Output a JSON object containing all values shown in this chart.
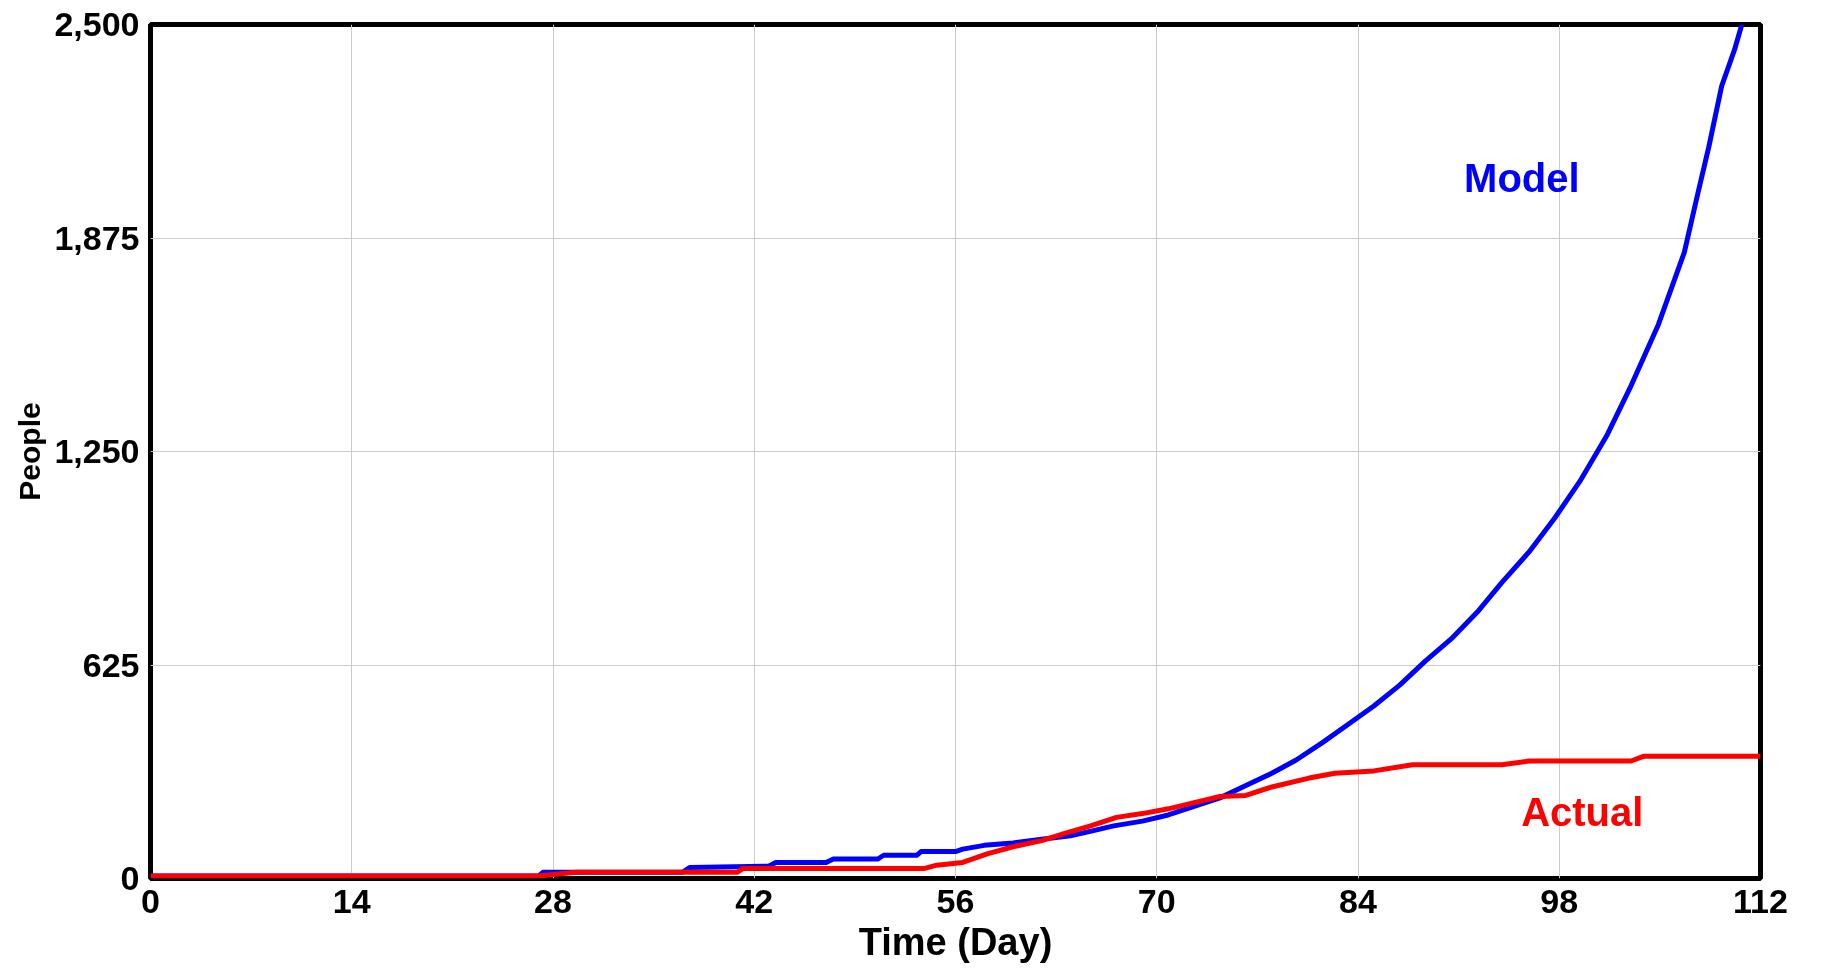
{
  "chart_data": {
    "type": "line",
    "xlabel": "Time (Day)",
    "ylabel": "People",
    "xlim": [
      0,
      112
    ],
    "xticks": [
      0,
      14,
      28,
      42,
      56,
      70,
      84,
      98,
      112
    ],
    "ylim": [
      0,
      2500
    ],
    "yticks": [
      0,
      625,
      {
        "value": 1250,
        "label": "1,250"
      },
      {
        "value": 1875,
        "label": "1,875"
      },
      {
        "value": 2500,
        "label": "2,500"
      }
    ],
    "grid": true,
    "legend": false,
    "series": [
      {
        "name": "Model",
        "color": "#0000ff",
        "x": [
          0,
          27,
          27.3,
          37,
          37.5,
          43,
          43.5,
          47,
          47.5,
          50.6,
          51,
          53.3,
          53.6,
          56,
          56.5,
          58,
          60,
          62,
          64,
          65.6,
          67,
          69,
          70.8,
          72.6,
          74.4,
          76.2,
          78,
          79.7,
          81.5,
          83.3,
          85.1,
          86.9,
          88.7,
          90.5,
          92.3,
          94,
          95.9,
          97.7,
          99.5,
          101.3,
          103,
          104.9,
          106.7,
          107.6,
          108.4,
          109.3,
          110.2,
          110.7
        ],
        "values": [
          7,
          7,
          18,
          18,
          32,
          36,
          47,
          47,
          57,
          57,
          68,
          68,
          79,
          79,
          86,
          97,
          104,
          115,
          125,
          140,
          154,
          168,
          186,
          211,
          236,
          272,
          308,
          347,
          397,
          451,
          505,
          566,
          637,
          702,
          780,
          866,
          956,
          1056,
          1167,
          1296,
          1443,
          1622,
          1833,
          1998,
          2141,
          2320,
          2427,
          2500
        ]
      },
      {
        "name": "Actual",
        "color": "#ff0000",
        "x": [
          0,
          27,
          29.6,
          40.8,
          41.2,
          53.8,
          54.7,
          56.5,
          58.2,
          60,
          62,
          63.6,
          65.4,
          67.2,
          69,
          70.8,
          72.6,
          74.4,
          76.2,
          78,
          80.6,
          82.4,
          85.1,
          87.8,
          94,
          95.9,
          103,
          103.9,
          112
        ],
        "values": [
          7,
          7,
          18,
          18,
          29,
          29,
          39,
          47,
          72,
          93,
          111,
          132,
          154,
          179,
          190,
          204,
          222,
          240,
          243,
          268,
          294,
          308,
          315,
          333,
          333,
          344,
          344,
          358,
          358
        ]
      }
    ]
  }
}
